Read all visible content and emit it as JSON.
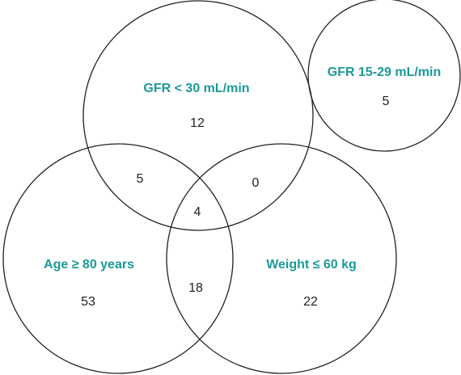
{
  "sets": [
    {
      "label": "GFR < 30 mL/min",
      "count": 12
    },
    {
      "label": "GFR 15-29 mL/min",
      "count": 5
    },
    {
      "label": "Age ≥ 80 years",
      "count": 53
    },
    {
      "label": "Weight ≤ 60 kg",
      "count": 22
    }
  ],
  "overlaps": [
    {
      "count": 5
    },
    {
      "count": 0
    },
    {
      "count": 4
    },
    {
      "count": 18
    }
  ]
}
